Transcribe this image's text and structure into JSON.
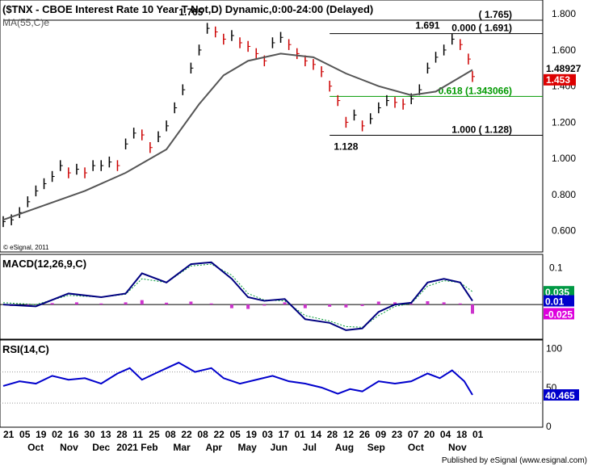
{
  "chart_data": {
    "type": "line",
    "title": "($TNX - CBOE Interest Rate 10 Year T Not,D) Dynamic,0:00-24:00 (Delayed)",
    "x_axis": {
      "day_labels": [
        "21",
        "05",
        "19",
        "02",
        "16",
        "30",
        "13",
        "28",
        "11",
        "25",
        "08",
        "22",
        "08",
        "22",
        "05",
        "19",
        "03",
        "17",
        "01",
        "14",
        "28",
        "12",
        "26",
        "09",
        "23",
        "07",
        "20",
        "04",
        "18",
        "01"
      ],
      "month_labels": [
        "Oct",
        "Nov",
        "Dec",
        "2021",
        "Feb",
        "Mar",
        "Apr",
        "May",
        "Jun",
        "Jul",
        "Aug",
        "Sep",
        "Oct",
        "Nov"
      ]
    },
    "panels": [
      {
        "id": "price",
        "ylim": [
          0.5,
          1.85
        ],
        "ticks": [
          "1.800",
          "1.600",
          "1.400",
          "1.200",
          "1.000",
          "0.800",
          "0.600"
        ],
        "indicator_label": "MA(55,C)e",
        "watermark": "© eSignal, 2011",
        "series": [
          {
            "type": "bar",
            "points": [
              [
                0,
                0.65
              ],
              [
                10,
                0.66
              ],
              [
                20,
                0.7
              ],
              [
                30,
                0.76
              ],
              [
                40,
                0.82
              ],
              [
                50,
                0.86
              ],
              [
                60,
                0.9
              ],
              [
                70,
                0.96
              ],
              [
                80,
                0.92
              ],
              [
                90,
                0.94
              ],
              [
                100,
                0.92
              ],
              [
                110,
                0.96
              ],
              [
                120,
                0.96
              ],
              [
                130,
                0.98
              ],
              [
                140,
                0.96
              ],
              [
                150,
                1.08
              ],
              [
                160,
                1.14
              ],
              [
                170,
                1.13
              ],
              [
                180,
                1.06
              ],
              [
                190,
                1.12
              ],
              [
                200,
                1.18
              ],
              [
                210,
                1.28
              ],
              [
                220,
                1.38
              ],
              [
                230,
                1.5
              ],
              [
                240,
                1.6
              ],
              [
                250,
                1.72
              ],
              [
                260,
                1.7
              ],
              [
                270,
                1.66
              ],
              [
                280,
                1.68
              ],
              [
                290,
                1.64
              ],
              [
                300,
                1.62
              ],
              [
                310,
                1.58
              ],
              [
                320,
                1.54
              ],
              [
                330,
                1.64
              ],
              [
                340,
                1.67
              ],
              [
                350,
                1.63
              ],
              [
                360,
                1.58
              ],
              [
                370,
                1.54
              ],
              [
                380,
                1.52
              ],
              [
                390,
                1.48
              ],
              [
                400,
                1.4
              ],
              [
                410,
                1.32
              ],
              [
                420,
                1.2
              ],
              [
                430,
                1.24
              ],
              [
                440,
                1.18
              ],
              [
                450,
                1.22
              ],
              [
                460,
                1.28
              ],
              [
                470,
                1.32
              ],
              [
                480,
                1.31
              ],
              [
                490,
                1.3
              ],
              [
                500,
                1.33
              ],
              [
                510,
                1.38
              ],
              [
                520,
                1.5
              ],
              [
                530,
                1.56
              ],
              [
                540,
                1.6
              ],
              [
                550,
                1.66
              ],
              [
                560,
                1.63
              ],
              [
                570,
                1.55
              ],
              [
                575,
                1.453
              ]
            ]
          },
          {
            "type": "line",
            "name": "MA(55,C)e",
            "points": [
              [
                0,
                0.66
              ],
              [
                50,
                0.74
              ],
              [
                100,
                0.82
              ],
              [
                150,
                0.92
              ],
              [
                200,
                1.05
              ],
              [
                240,
                1.3
              ],
              [
                270,
                1.46
              ],
              [
                300,
                1.54
              ],
              [
                340,
                1.58
              ],
              [
                380,
                1.56
              ],
              [
                420,
                1.47
              ],
              [
                460,
                1.4
              ],
              [
                500,
                1.35
              ],
              [
                530,
                1.37
              ],
              [
                560,
                1.45
              ],
              [
                575,
                1.49
              ]
            ]
          }
        ],
        "annotations": [
          {
            "label": "1.765",
            "x": 230,
            "y": 1.765
          },
          {
            "label": "1.691",
            "x": 520,
            "y": 1.691
          },
          {
            "label": "1.128",
            "x": 420,
            "y": 1.128
          }
        ],
        "fib_levels": [
          {
            "label": "( 1.765)",
            "value": 1.765,
            "color": "#000000"
          },
          {
            "label": "0.000 ( 1.691)",
            "value": 1.691,
            "color": "#000000"
          },
          {
            "label": "0.618 (1.343066)",
            "value": 1.343066,
            "color": "#009900"
          },
          {
            "label": "1.000 ( 1.128)",
            "value": 1.128,
            "color": "#000000"
          }
        ],
        "badges": [
          {
            "label": "1.48927",
            "value": 1.489,
            "bg": "#ffffff",
            "color": "#000000"
          },
          {
            "label": "1.453",
            "value": 1.453,
            "bg": "#dd0000",
            "color": "#ffffff"
          }
        ]
      },
      {
        "id": "macd",
        "indicator_label": "MACD(12,26,9,C)",
        "ylim": [
          -0.09,
          0.13
        ],
        "ticks": [
          "0.1"
        ],
        "series": [
          {
            "type": "line",
            "name": "MACD",
            "points": [
              [
                0,
                0
              ],
              [
                40,
                -0.005
              ],
              [
                80,
                0.03
              ],
              [
                120,
                0.02
              ],
              [
                150,
                0.03
              ],
              [
                170,
                0.085
              ],
              [
                200,
                0.06
              ],
              [
                230,
                0.11
              ],
              [
                255,
                0.115
              ],
              [
                280,
                0.07
              ],
              [
                300,
                0.02
              ],
              [
                320,
                0.01
              ],
              [
                345,
                0.015
              ],
              [
                370,
                -0.04
              ],
              [
                400,
                -0.05
              ],
              [
                420,
                -0.07
              ],
              [
                440,
                -0.065
              ],
              [
                460,
                -0.02
              ],
              [
                480,
                0.0
              ],
              [
                500,
                0.005
              ],
              [
                520,
                0.06
              ],
              [
                540,
                0.07
              ],
              [
                560,
                0.06
              ],
              [
                575,
                0.01
              ]
            ]
          },
          {
            "type": "line",
            "name": "Signal",
            "points": [
              [
                0,
                0.005
              ],
              [
                40,
                0.0
              ],
              [
                80,
                0.025
              ],
              [
                120,
                0.02
              ],
              [
                150,
                0.028
              ],
              [
                170,
                0.07
              ],
              [
                200,
                0.06
              ],
              [
                230,
                0.105
              ],
              [
                255,
                0.11
              ],
              [
                280,
                0.08
              ],
              [
                300,
                0.03
              ],
              [
                320,
                0.012
              ],
              [
                345,
                0.01
              ],
              [
                370,
                -0.03
              ],
              [
                400,
                -0.045
              ],
              [
                420,
                -0.06
              ],
              [
                440,
                -0.062
              ],
              [
                460,
                -0.03
              ],
              [
                480,
                -0.005
              ],
              [
                500,
                0.003
              ],
              [
                520,
                0.05
              ],
              [
                540,
                0.065
              ],
              [
                560,
                0.06
              ],
              [
                575,
                0.035
              ]
            ]
          },
          {
            "type": "histogram",
            "name": "Histogram",
            "points": [
              [
                10,
                -0.004
              ],
              [
                30,
                -0.002
              ],
              [
                60,
                0.004
              ],
              [
                90,
                0.006
              ],
              [
                120,
                0.003
              ],
              [
                150,
                0.006
              ],
              [
                170,
                0.012
              ],
              [
                200,
                0.005
              ],
              [
                230,
                0.008
              ],
              [
                255,
                0.003
              ],
              [
                280,
                -0.01
              ],
              [
                300,
                -0.012
              ],
              [
                320,
                -0.003
              ],
              [
                345,
                0.006
              ],
              [
                370,
                -0.01
              ],
              [
                400,
                -0.006
              ],
              [
                420,
                -0.008
              ],
              [
                440,
                -0.004
              ],
              [
                460,
                0.008
              ],
              [
                480,
                0.006
              ],
              [
                500,
                0.003
              ],
              [
                520,
                0.009
              ],
              [
                540,
                0.006
              ],
              [
                560,
                0.003
              ],
              [
                575,
                -0.025
              ]
            ]
          }
        ],
        "badges": [
          {
            "label": "0.035",
            "value": 0.035,
            "bg": "#009944",
            "color": "#ffffff"
          },
          {
            "label": "0.01",
            "value": 0.01,
            "bg": "#0000cc",
            "color": "#ffffff"
          },
          {
            "label": "-0.025",
            "value": -0.025,
            "bg": "#dd00dd",
            "color": "#ffffff"
          }
        ]
      },
      {
        "id": "rsi",
        "indicator_label": "RSI(14,C)",
        "ylim": [
          0,
          108
        ],
        "ticks": [
          "100",
          "50",
          "0"
        ],
        "series": [
          {
            "type": "line",
            "name": "RSI",
            "points": [
              [
                0,
                52
              ],
              [
                20,
                58
              ],
              [
                40,
                55
              ],
              [
                60,
                65
              ],
              [
                80,
                60
              ],
              [
                100,
                62
              ],
              [
                120,
                55
              ],
              [
                140,
                68
              ],
              [
                155,
                75
              ],
              [
                170,
                60
              ],
              [
                190,
                70
              ],
              [
                215,
                82
              ],
              [
                235,
                70
              ],
              [
                255,
                75
              ],
              [
                270,
                62
              ],
              [
                290,
                55
              ],
              [
                310,
                60
              ],
              [
                330,
                65
              ],
              [
                350,
                58
              ],
              [
                370,
                55
              ],
              [
                390,
                50
              ],
              [
                410,
                42
              ],
              [
                425,
                48
              ],
              [
                440,
                45
              ],
              [
                460,
                58
              ],
              [
                480,
                55
              ],
              [
                500,
                58
              ],
              [
                520,
                68
              ],
              [
                535,
                62
              ],
              [
                550,
                72
              ],
              [
                565,
                58
              ],
              [
                575,
                40.465
              ]
            ]
          }
        ],
        "badges": [
          {
            "label": "40.465",
            "value": 40.465,
            "bg": "#0000cc",
            "color": "#ffffff"
          }
        ]
      }
    ],
    "footer": "Published by eSignal (www.esignal.com)"
  }
}
